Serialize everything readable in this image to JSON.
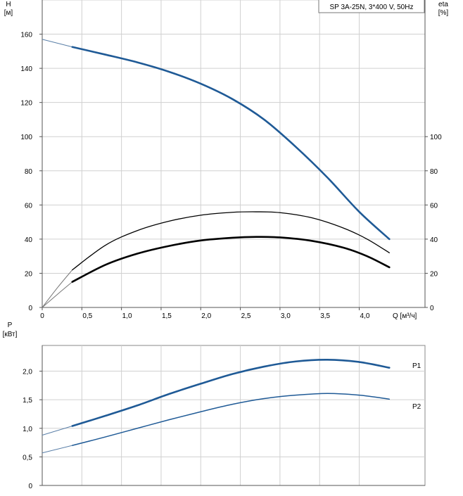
{
  "chart_data": [
    {
      "type": "line",
      "title": "SP 3A-25N, 3*400 V, 50Hz",
      "ylabel_left": [
        "H",
        "[м]"
      ],
      "ylabel_right": [
        "eta",
        "[%]"
      ],
      "xlabel": "Q [м³/ч]",
      "xlim": [
        0,
        4.83
      ],
      "ylim_left": [
        0,
        180
      ],
      "ylim_right": [
        0,
        180
      ],
      "x_ticks": [
        "0",
        "0,5",
        "1,0",
        "1,5",
        "2,0",
        "2,5",
        "3,0",
        "3,5",
        "4,0"
      ],
      "x_tick_values": [
        0,
        0.5,
        1.0,
        1.5,
        2.0,
        2.5,
        3.0,
        3.5,
        4.0
      ],
      "y_ticks_left": [
        "0",
        "20",
        "40",
        "60",
        "80",
        "100",
        "120",
        "140",
        "160"
      ],
      "y_tick_values_left": [
        0,
        20,
        40,
        60,
        80,
        100,
        120,
        140,
        160
      ],
      "y_ticks_right": [
        "0",
        "20",
        "40",
        "60",
        "80",
        "100"
      ],
      "y_tick_values_right": [
        0,
        20,
        40,
        60,
        80,
        100
      ],
      "grid": true,
      "series": [
        {
          "id": "H",
          "axis": "left",
          "color": "#1f5a96",
          "x": [
            0.38,
            0.8,
            1.2,
            1.6,
            2.0,
            2.4,
            2.8,
            3.2,
            3.6,
            4.0,
            4.38
          ],
          "y": [
            152.5,
            148,
            143.5,
            138,
            131,
            122,
            110,
            94,
            76,
            56,
            40
          ],
          "extension": {
            "x": [
              0,
              0.38
            ],
            "y": [
              157,
              152.5
            ]
          }
        },
        {
          "id": "eta-upper",
          "axis": "right",
          "color": "#000000",
          "x": [
            0.38,
            0.8,
            1.2,
            1.6,
            2.0,
            2.4,
            2.7,
            3.0,
            3.4,
            3.8,
            4.1,
            4.38
          ],
          "y": [
            22,
            36.5,
            45,
            50.5,
            54,
            55.7,
            56,
            55.5,
            52.5,
            46.5,
            40,
            32
          ],
          "extension": {
            "x": [
              0,
              0.2,
              0.38
            ],
            "y": [
              0,
              12,
              22
            ]
          }
        },
        {
          "id": "eta-lower",
          "axis": "right",
          "color": "#000000",
          "x": [
            0.38,
            0.8,
            1.2,
            1.6,
            2.0,
            2.4,
            2.7,
            3.0,
            3.4,
            3.8,
            4.1,
            4.38
          ],
          "y": [
            15,
            25,
            31.5,
            36,
            39.2,
            40.8,
            41.3,
            41,
            39,
            35,
            30,
            23.5
          ],
          "extension": {
            "x": [
              0,
              0.2,
              0.38
            ],
            "y": [
              0,
              8,
              15
            ]
          }
        }
      ]
    },
    {
      "type": "line",
      "ylabel": [
        "P",
        "[кВт]"
      ],
      "xlim": [
        0,
        4.83
      ],
      "ylim": [
        0,
        2.45
      ],
      "y_ticks": [
        "0",
        "0,5",
        "1,0",
        "1,5",
        "2,0"
      ],
      "y_tick_values": [
        0,
        0.5,
        1.0,
        1.5,
        2.0
      ],
      "x_tick_values": [
        0,
        0.5,
        1.0,
        1.5,
        2.0,
        2.5,
        3.0,
        3.5,
        4.0
      ],
      "grid": true,
      "series": [
        {
          "name": "P1",
          "color": "#1f5a96",
          "x": [
            0.38,
            0.8,
            1.2,
            1.6,
            2.0,
            2.4,
            2.8,
            3.2,
            3.6,
            4.0,
            4.38
          ],
          "y": [
            1.04,
            1.22,
            1.4,
            1.6,
            1.78,
            1.95,
            2.08,
            2.17,
            2.2,
            2.16,
            2.06
          ],
          "extension": {
            "x": [
              0,
              0.38
            ],
            "y": [
              0.88,
              1.04
            ]
          }
        },
        {
          "name": "P2",
          "color": "#1f5a96",
          "x": [
            0.38,
            0.8,
            1.2,
            1.6,
            2.0,
            2.4,
            2.8,
            3.2,
            3.6,
            4.0,
            4.38
          ],
          "y": [
            0.7,
            0.85,
            1.0,
            1.15,
            1.29,
            1.42,
            1.52,
            1.58,
            1.61,
            1.58,
            1.51
          ],
          "extension": {
            "x": [
              0,
              0.38
            ],
            "y": [
              0.57,
              0.7
            ]
          }
        }
      ]
    }
  ]
}
